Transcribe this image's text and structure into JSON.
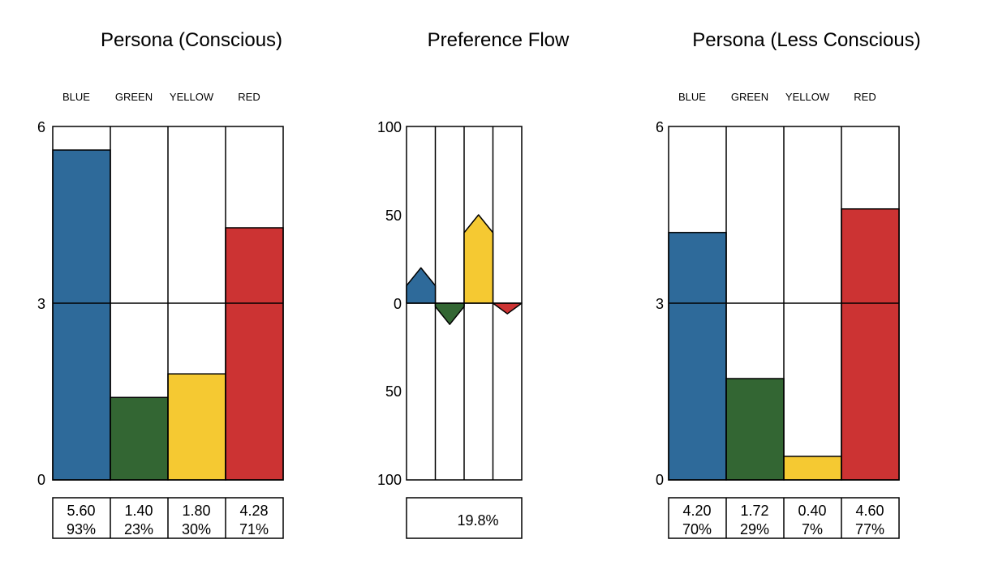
{
  "colors": {
    "BLUE": "#2e6a9a",
    "GREEN": "#336633",
    "YELLOW": "#f5c932",
    "RED": "#cc3333"
  },
  "chart_data": [
    {
      "type": "bar",
      "title": "Persona (Conscious)",
      "categories": [
        "BLUE",
        "GREEN",
        "YELLOW",
        "RED"
      ],
      "values": [
        5.6,
        1.4,
        1.8,
        4.28
      ],
      "value_labels": [
        "5.60",
        "1.40",
        "1.80",
        "4.28"
      ],
      "percent_labels": [
        "93%",
        "23%",
        "30%",
        "71%"
      ],
      "ylim": [
        0,
        6
      ],
      "yticks": [
        "0",
        "3",
        "6"
      ],
      "grid": true
    },
    {
      "type": "bar",
      "title": "Preference Flow",
      "categories": [
        "BLUE",
        "GREEN",
        "YELLOW",
        "RED"
      ],
      "values": [
        20,
        -12,
        50,
        -6
      ],
      "ylim": [
        -100,
        100
      ],
      "yticks": [
        "100",
        "50",
        "0",
        "50",
        "100"
      ],
      "summary_label": "19.8%",
      "grid": true
    },
    {
      "type": "bar",
      "title": "Persona (Less Conscious)",
      "categories": [
        "BLUE",
        "GREEN",
        "YELLOW",
        "RED"
      ],
      "values": [
        4.2,
        1.72,
        0.4,
        4.6
      ],
      "value_labels": [
        "4.20",
        "1.72",
        "0.40",
        "4.60"
      ],
      "percent_labels": [
        "70%",
        "29%",
        "7%",
        "77%"
      ],
      "ylim": [
        0,
        6
      ],
      "yticks": [
        "0",
        "3",
        "6"
      ],
      "grid": true
    }
  ]
}
